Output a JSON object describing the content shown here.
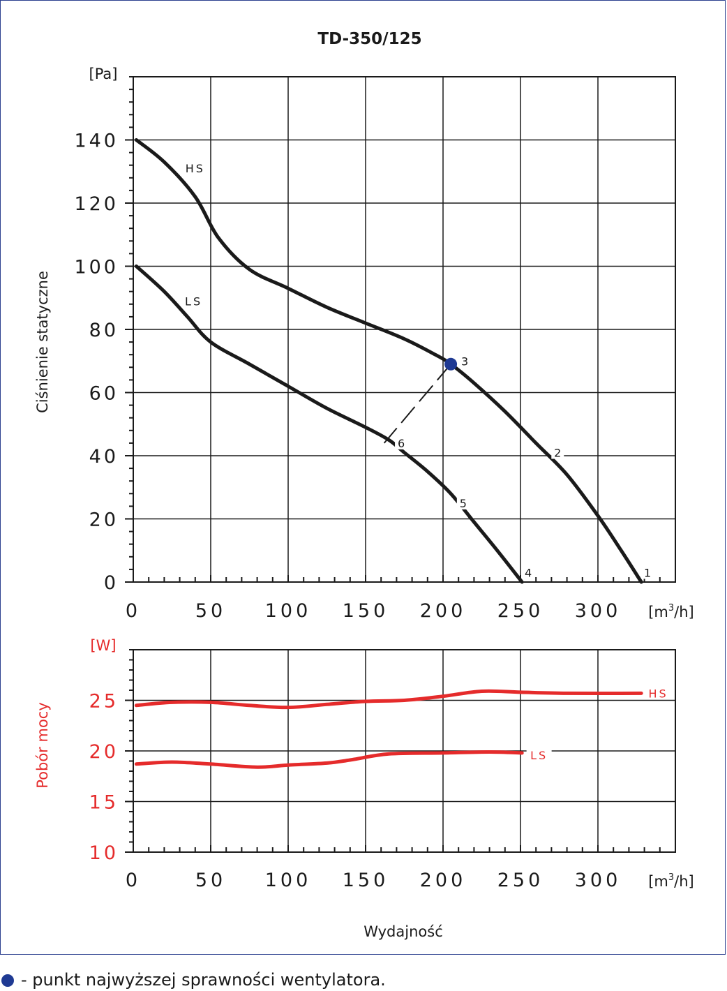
{
  "chart_data": [
    {
      "type": "line",
      "title": "TD-350/125",
      "ylabel": "Ciśnienie statyczne",
      "y_unit": "[Pa]",
      "x_unit_base": "[m",
      "x_unit_sup": "3",
      "x_unit_end": "/h]",
      "xlim": [
        0,
        350
      ],
      "ylim": [
        0,
        160
      ],
      "x_ticks": [
        0,
        50,
        100,
        150,
        200,
        250,
        300
      ],
      "x_tick_labels": [
        "0",
        "50",
        "100",
        "150",
        "200",
        "250",
        "300"
      ],
      "y_ticks": [
        0,
        20,
        40,
        60,
        80,
        100,
        120,
        140
      ],
      "y_tick_labels": [
        "0",
        "20",
        "40",
        "60",
        "80",
        "100",
        "120",
        "140"
      ],
      "grid": true,
      "series": [
        {
          "name": "HS",
          "points": [
            [
              2,
              140
            ],
            [
              20,
              133
            ],
            [
              40,
              122
            ],
            [
              55,
              109
            ],
            [
              75,
              99
            ],
            [
              100,
              93
            ],
            [
              125,
              87
            ],
            [
              150,
              82
            ],
            [
              175,
              77
            ],
            [
              195,
              72
            ],
            [
              205,
              69
            ],
            [
              220,
              63
            ],
            [
              240,
              54
            ],
            [
              260,
              44
            ],
            [
              280,
              34
            ],
            [
              300,
              21
            ],
            [
              315,
              10
            ],
            [
              328,
              0
            ]
          ]
        },
        {
          "name": "LS",
          "points": [
            [
              2,
              100
            ],
            [
              20,
              92
            ],
            [
              35,
              84
            ],
            [
              50,
              76
            ],
            [
              75,
              69
            ],
            [
              100,
              62
            ],
            [
              125,
              55
            ],
            [
              150,
              49
            ],
            [
              165,
              45
            ],
            [
              175,
              41
            ],
            [
              190,
              35
            ],
            [
              205,
              28
            ],
            [
              220,
              19
            ],
            [
              235,
              10
            ],
            [
              251,
              0
            ]
          ]
        }
      ],
      "curve_labels": [
        {
          "text": "HS",
          "x": 40,
          "y": 131
        },
        {
          "text": "LS",
          "x": 39,
          "y": 89
        }
      ],
      "point_labels": [
        {
          "text": "1",
          "x": 332,
          "y": 3
        },
        {
          "text": "2",
          "x": 274,
          "y": 41
        },
        {
          "text": "3",
          "x": 214,
          "y": 70
        },
        {
          "text": "4",
          "x": 255,
          "y": 3
        },
        {
          "text": "5",
          "x": 213,
          "y": 25
        },
        {
          "text": "6",
          "x": 173,
          "y": 44
        }
      ],
      "efficiency_point": {
        "x": 205,
        "y": 69,
        "color": "#1f3a93"
      },
      "dashed_line": [
        [
          205,
          69
        ],
        [
          162,
          44
        ]
      ]
    },
    {
      "type": "line",
      "ylabel": "Pobór mocy",
      "y_unit": "[W]",
      "xlabel": "Wydajność",
      "x_unit_base": "[m",
      "x_unit_sup": "3",
      "x_unit_end": "/h]",
      "xlim": [
        0,
        350
      ],
      "ylim": [
        10,
        30
      ],
      "x_ticks": [
        0,
        50,
        100,
        150,
        200,
        250,
        300
      ],
      "x_tick_labels": [
        "0",
        "50",
        "100",
        "150",
        "200",
        "250",
        "300"
      ],
      "y_ticks": [
        10,
        15,
        20,
        25
      ],
      "y_tick_labels": [
        "10",
        "15",
        "20",
        "25"
      ],
      "grid": true,
      "color": "#e52b2b",
      "series": [
        {
          "name": "HS",
          "points": [
            [
              2,
              24.5
            ],
            [
              25,
              24.8
            ],
            [
              50,
              24.8
            ],
            [
              75,
              24.5
            ],
            [
              100,
              24.3
            ],
            [
              125,
              24.6
            ],
            [
              150,
              24.9
            ],
            [
              175,
              25.0
            ],
            [
              200,
              25.4
            ],
            [
              225,
              25.9
            ],
            [
              250,
              25.8
            ],
            [
              280,
              25.7
            ],
            [
              328,
              25.7
            ]
          ]
        },
        {
          "name": "LS",
          "points": [
            [
              2,
              18.7
            ],
            [
              25,
              18.9
            ],
            [
              50,
              18.7
            ],
            [
              80,
              18.4
            ],
            [
              100,
              18.6
            ],
            [
              125,
              18.8
            ],
            [
              140,
              19.1
            ],
            [
              165,
              19.7
            ],
            [
              200,
              19.8
            ],
            [
              230,
              19.9
            ],
            [
              251,
              19.8
            ]
          ]
        }
      ],
      "curve_labels": [
        {
          "text": "HS",
          "x": 339,
          "y": 25.7
        },
        {
          "text": "LS",
          "x": 262,
          "y": 19.6
        }
      ]
    }
  ],
  "footnote": "- punkt najwyższej sprawności wentylatora."
}
